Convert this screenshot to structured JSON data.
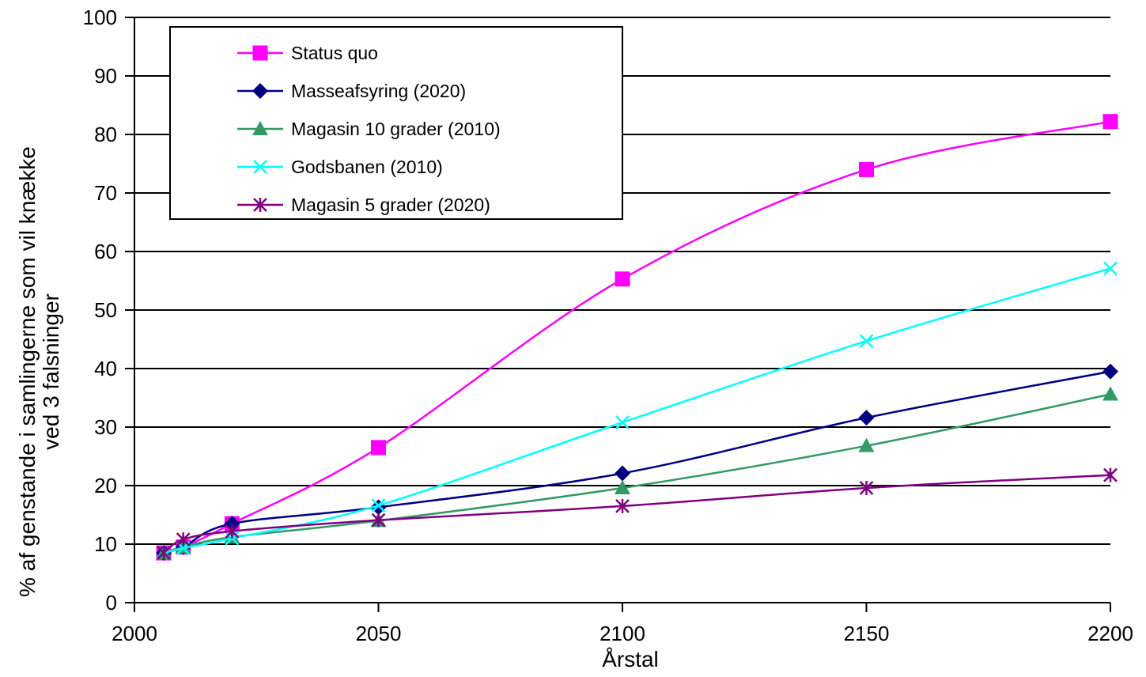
{
  "chart_data": {
    "type": "line",
    "title": "",
    "xlabel": "Årstal",
    "ylabel": "% af genstande i samlingerne som vil knække ved 3 falsninger",
    "ylabel_lines": [
      "% af genstande i samlingerne som vil knække",
      "ved 3 falsninger"
    ],
    "xlim": [
      2000,
      2200
    ],
    "ylim": [
      0,
      100
    ],
    "x_ticks": [
      "2000",
      "2050",
      "2100",
      "2150",
      "2200"
    ],
    "y_ticks": [
      "0",
      "10",
      "20",
      "30",
      "40",
      "50",
      "60",
      "70",
      "80",
      "90",
      "100"
    ],
    "grid": "horizontal",
    "legend_position": "top-left",
    "x": [
      2006,
      2010,
      2020,
      2050,
      2100,
      2150,
      2200
    ],
    "series": [
      {
        "name": "Status quo",
        "color": "#ff00ff",
        "marker": "square",
        "values": [
          8.5,
          9.5,
          13.5,
          26.5,
          55.3,
          74.0,
          82.2
        ]
      },
      {
        "name": "Masseafsyring (2020)",
        "color": "#000080",
        "marker": "diamond",
        "values": [
          8.5,
          9.5,
          13.5,
          16.3,
          22.1,
          31.6,
          39.5
        ]
      },
      {
        "name": "Magasin 10 grader (2010)",
        "color": "#339966",
        "marker": "triangle",
        "values": [
          8.5,
          9.5,
          11.2,
          14.0,
          19.6,
          26.8,
          35.6
        ]
      },
      {
        "name": "Godsbanen (2010)",
        "color": "#00ffff",
        "marker": "x",
        "values": [
          8.5,
          9.3,
          11.0,
          16.6,
          30.8,
          44.7,
          57.1
        ]
      },
      {
        "name": "Magasin 5 grader (2020)",
        "color": "#800080",
        "marker": "asterisk",
        "values": [
          8.5,
          10.8,
          12.2,
          14.1,
          16.5,
          19.6,
          21.8
        ]
      }
    ]
  }
}
